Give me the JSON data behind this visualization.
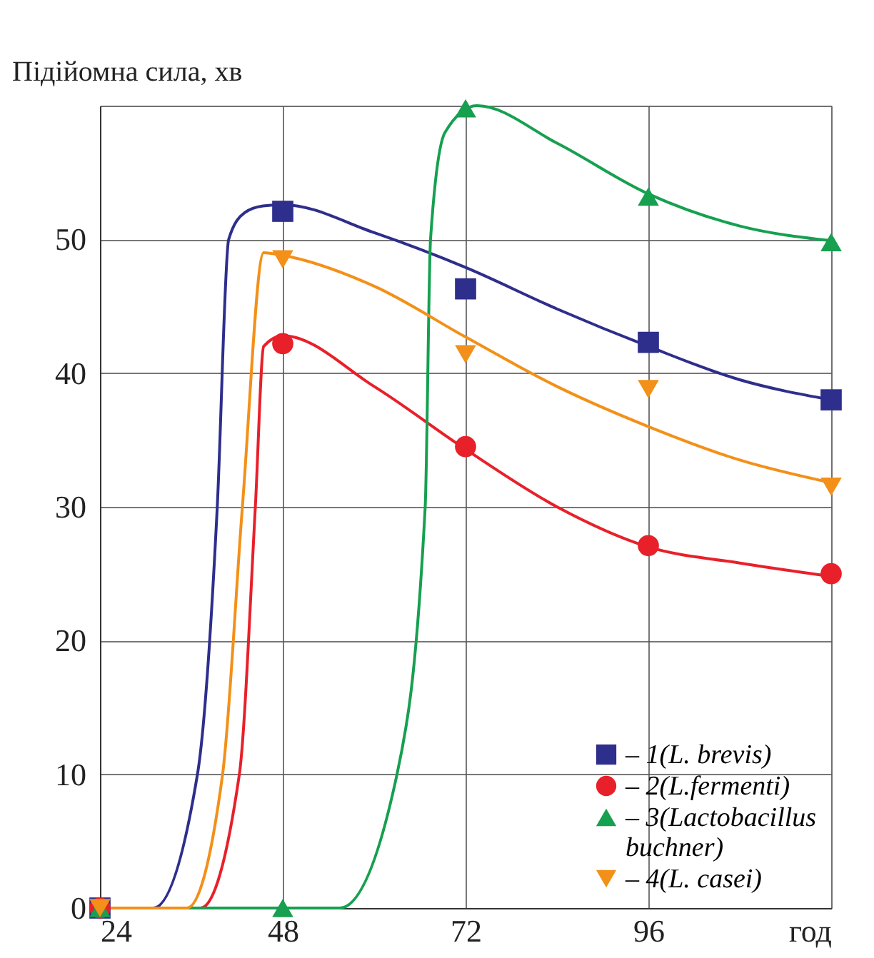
{
  "chart_data": {
    "type": "line",
    "ylabel": "Підійомна сила, хв",
    "xlim": [
      24,
      120
    ],
    "xticks": [
      24,
      48,
      72,
      96,
      {
        "value": 120,
        "label": "год"
      }
    ],
    "ylim": [
      0,
      60
    ],
    "yticks": [
      0,
      10,
      20,
      30,
      40,
      50,
      {
        "value": 60,
        "label": null
      }
    ],
    "grid": true,
    "legend": "bottom right",
    "series": [
      {
        "color": "#2e2e8c",
        "x": [
          24,
          31,
          36.8,
          39.4,
          40.9,
          43,
          45.4,
          48,
          60,
          72,
          84,
          96,
          108,
          120
        ],
        "values": [
          0,
          0,
          10,
          30,
          50,
          52,
          52.5,
          52.6,
          50.5,
          47.9,
          44.8,
          42.0,
          39.5,
          38.0
        ]
      },
      {
        "color": "#e8202a",
        "x": [
          24,
          37.2,
          42.3,
          44.4,
          45.5,
          48,
          60,
          72,
          84,
          96,
          108,
          120
        ],
        "values": [
          0,
          0,
          10,
          30,
          42,
          42.8,
          39,
          34.3,
          30,
          27.0,
          25.8,
          24.8
        ]
      },
      {
        "color": "#16a050",
        "x": [
          24,
          55.5,
          63,
          66.7,
          67.4,
          69.3,
          73.5,
          84,
          96,
          108,
          120
        ],
        "values": [
          0,
          0,
          10,
          30,
          50,
          58,
          60,
          57.2,
          53.4,
          51,
          49.9
        ]
      },
      {
        "color": "#f39019",
        "x": [
          24,
          35.4,
          40.1,
          42.7,
          45.5,
          48,
          60,
          72,
          84,
          96,
          108,
          120
        ],
        "values": [
          0,
          0,
          10,
          30,
          49,
          48.8,
          46.5,
          42.7,
          39,
          36.0,
          33.5,
          31.8
        ]
      },
      {
        "type": "scatter",
        "name": "– 1(L. brevis)",
        "color": "#2e2e8c",
        "marker": "square",
        "x": [
          24,
          48,
          72,
          96,
          120
        ],
        "values": [
          0,
          52.1,
          46.3,
          42.3,
          38.0
        ]
      },
      {
        "type": "scatter",
        "name": "– 2(L.fermenti)",
        "color": "#e8202a",
        "marker": "circle",
        "x": [
          24,
          48,
          72,
          96,
          120
        ],
        "values": [
          0,
          42.2,
          34.5,
          27.1,
          25.0
        ]
      },
      {
        "type": "scatter",
        "name": "– 3(Lactobacillus buchner)",
        "color": "#16a050",
        "marker": "triangle",
        "x": [
          24,
          48,
          72,
          96,
          120
        ],
        "values": [
          0,
          0,
          59.8,
          53.2,
          49.8
        ]
      },
      {
        "type": "scatter",
        "name": "– 4(L. casei)",
        "color": "#f39019",
        "marker": "triangle-down",
        "x": [
          24,
          48,
          72,
          96,
          120
        ],
        "values": [
          0,
          48.5,
          41.4,
          38.8,
          31.5
        ]
      }
    ]
  }
}
